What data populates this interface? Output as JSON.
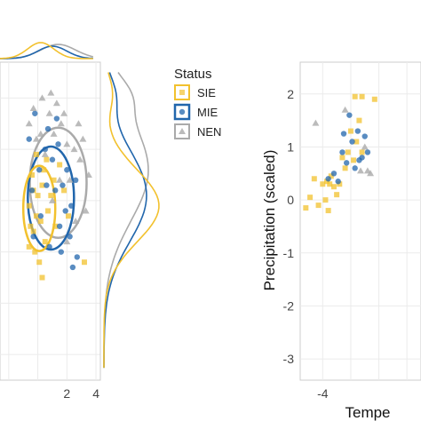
{
  "colors": {
    "SIE": "#F2C12E",
    "MIE": "#2166AC",
    "NEN": "#AAAAAA"
  },
  "legend": {
    "title": "Status",
    "items": [
      {
        "label": "SIE",
        "color": "#F2C12E",
        "shape": "square"
      },
      {
        "label": "MIE",
        "color": "#2166AC",
        "shape": "circle"
      },
      {
        "label": "NEN",
        "color": "#AAAAAA",
        "shape": "triangle"
      }
    ]
  },
  "chart_data": [
    {
      "type": "scatter",
      "title": "",
      "xlabel": "",
      "ylabel": "",
      "xlim": [
        -2.6,
        4.3
      ],
      "ylim": [
        -3.5,
        2.7
      ],
      "xticks": [
        2,
        4
      ],
      "grid": true,
      "marginals": "density curves (top and right)",
      "series": [
        {
          "name": "SIE",
          "points": [
            [
              -0.6,
              -0.1
            ],
            [
              -0.3,
              -0.6
            ],
            [
              -0.1,
              -0.3
            ],
            [
              0.0,
              0.1
            ],
            [
              0.2,
              -0.4
            ],
            [
              0.3,
              0.3
            ],
            [
              -0.4,
              0.5
            ],
            [
              0.5,
              -0.8
            ],
            [
              -0.2,
              -1.0
            ],
            [
              0.1,
              -1.2
            ],
            [
              0.4,
              0.6
            ],
            [
              -0.5,
              -0.5
            ],
            [
              0.7,
              -0.2
            ],
            [
              0.6,
              0.8
            ],
            [
              -0.1,
              0.9
            ],
            [
              0.9,
              0.1
            ],
            [
              1.2,
              -0.5
            ],
            [
              -0.3,
              0.2
            ],
            [
              1.1,
              0.4
            ],
            [
              1.8,
              0.2
            ],
            [
              2.1,
              -0.3
            ],
            [
              3.2,
              -1.2
            ],
            [
              1.5,
              0.7
            ],
            [
              -0.6,
              -0.9
            ],
            [
              0.3,
              -1.5
            ]
          ]
        },
        {
          "name": "MIE",
          "points": [
            [
              -0.4,
              0.2
            ],
            [
              0.1,
              0.6
            ],
            [
              0.6,
              0.3
            ],
            [
              1.0,
              0.8
            ],
            [
              1.4,
              1.1
            ],
            [
              1.7,
              0.3
            ],
            [
              2.0,
              0.6
            ],
            [
              2.3,
              -0.1
            ],
            [
              2.7,
              -1.1
            ],
            [
              2.4,
              -1.3
            ],
            [
              1.5,
              -0.5
            ],
            [
              0.8,
              -0.9
            ],
            [
              0.2,
              -0.3
            ],
            [
              -0.3,
              -0.7
            ],
            [
              1.9,
              -0.2
            ],
            [
              1.2,
              0.2
            ],
            [
              0.5,
              1.0
            ],
            [
              1.3,
              1.6
            ],
            [
              -0.6,
              1.2
            ],
            [
              -0.2,
              1.7
            ],
            [
              0.7,
              1.4
            ],
            [
              2.2,
              -0.7
            ],
            [
              1.6,
              -1.0
            ],
            [
              2.6,
              0.4
            ]
          ]
        },
        {
          "name": "NEN",
          "points": [
            [
              -0.3,
              1.8
            ],
            [
              0.2,
              1.3
            ],
            [
              0.8,
              1.7
            ],
            [
              1.1,
              1.3
            ],
            [
              1.6,
              1.5
            ],
            [
              2.0,
              1.1
            ],
            [
              2.5,
              1.0
            ],
            [
              2.9,
              0.8
            ],
            [
              3.5,
              0.5
            ],
            [
              -0.6,
              1.5
            ],
            [
              0.5,
              0.9
            ],
            [
              1.5,
              0.4
            ],
            [
              2.2,
              0.4
            ],
            [
              1.0,
              0.0
            ],
            [
              2.6,
              -0.4
            ],
            [
              0.3,
              2.0
            ],
            [
              1.8,
              1.7
            ],
            [
              2.8,
              1.5
            ],
            [
              -0.1,
              1.2
            ],
            [
              0.9,
              2.1
            ],
            [
              3.1,
              1.2
            ],
            [
              1.3,
              1.9
            ],
            [
              3.3,
              -0.2
            ],
            [
              2.0,
              -0.8
            ]
          ]
        }
      ]
    },
    {
      "type": "scatter",
      "title": "",
      "xlabel": "Tempe",
      "ylabel": "Precipitation (scaled)",
      "xlim": [
        -5.6,
        3.0
      ],
      "ylim": [
        -3.4,
        2.6
      ],
      "xticks": [
        -4
      ],
      "yticks": [
        2,
        1,
        0,
        -1,
        -2,
        -3
      ],
      "grid": true,
      "series": [
        {
          "name": "SIE",
          "points": [
            [
              -5.2,
              -0.15
            ],
            [
              -4.9,
              0.05
            ],
            [
              -4.6,
              0.4
            ],
            [
              -4.3,
              -0.1
            ],
            [
              -4.0,
              0.3
            ],
            [
              -3.8,
              0.0
            ],
            [
              -3.6,
              -0.2
            ],
            [
              -3.4,
              0.45
            ],
            [
              -3.2,
              0.25
            ],
            [
              -3.0,
              0.1
            ],
            [
              -2.8,
              0.3
            ],
            [
              -2.6,
              0.8
            ],
            [
              -2.4,
              0.6
            ],
            [
              -2.2,
              0.9
            ],
            [
              -2.0,
              1.3
            ],
            [
              -1.8,
              0.75
            ],
            [
              -1.6,
              1.1
            ],
            [
              -1.4,
              1.5
            ],
            [
              -1.2,
              0.9
            ],
            [
              -3.5,
              0.3
            ],
            [
              -3.7,
              0.35
            ],
            [
              -1.7,
              1.95
            ],
            [
              -1.2,
              1.95
            ],
            [
              -0.3,
              1.9
            ]
          ]
        },
        {
          "name": "MIE",
          "points": [
            [
              -3.6,
              0.4
            ],
            [
              -3.2,
              0.5
            ],
            [
              -2.9,
              0.35
            ],
            [
              -2.6,
              0.9
            ],
            [
              -2.3,
              0.7
            ],
            [
              -2.1,
              1.6
            ],
            [
              -1.9,
              1.1
            ],
            [
              -1.7,
              0.6
            ],
            [
              -1.5,
              1.3
            ],
            [
              -1.2,
              0.8
            ],
            [
              -1.0,
              1.2
            ],
            [
              -0.8,
              0.9
            ],
            [
              -2.5,
              1.25
            ],
            [
              -1.4,
              0.75
            ]
          ]
        },
        {
          "name": "NEN",
          "points": [
            [
              -4.5,
              1.45
            ],
            [
              -2.4,
              1.7
            ],
            [
              -1.3,
              0.55
            ],
            [
              -1.0,
              1.0
            ],
            [
              -0.8,
              0.55
            ],
            [
              -0.6,
              0.5
            ]
          ]
        }
      ]
    }
  ]
}
